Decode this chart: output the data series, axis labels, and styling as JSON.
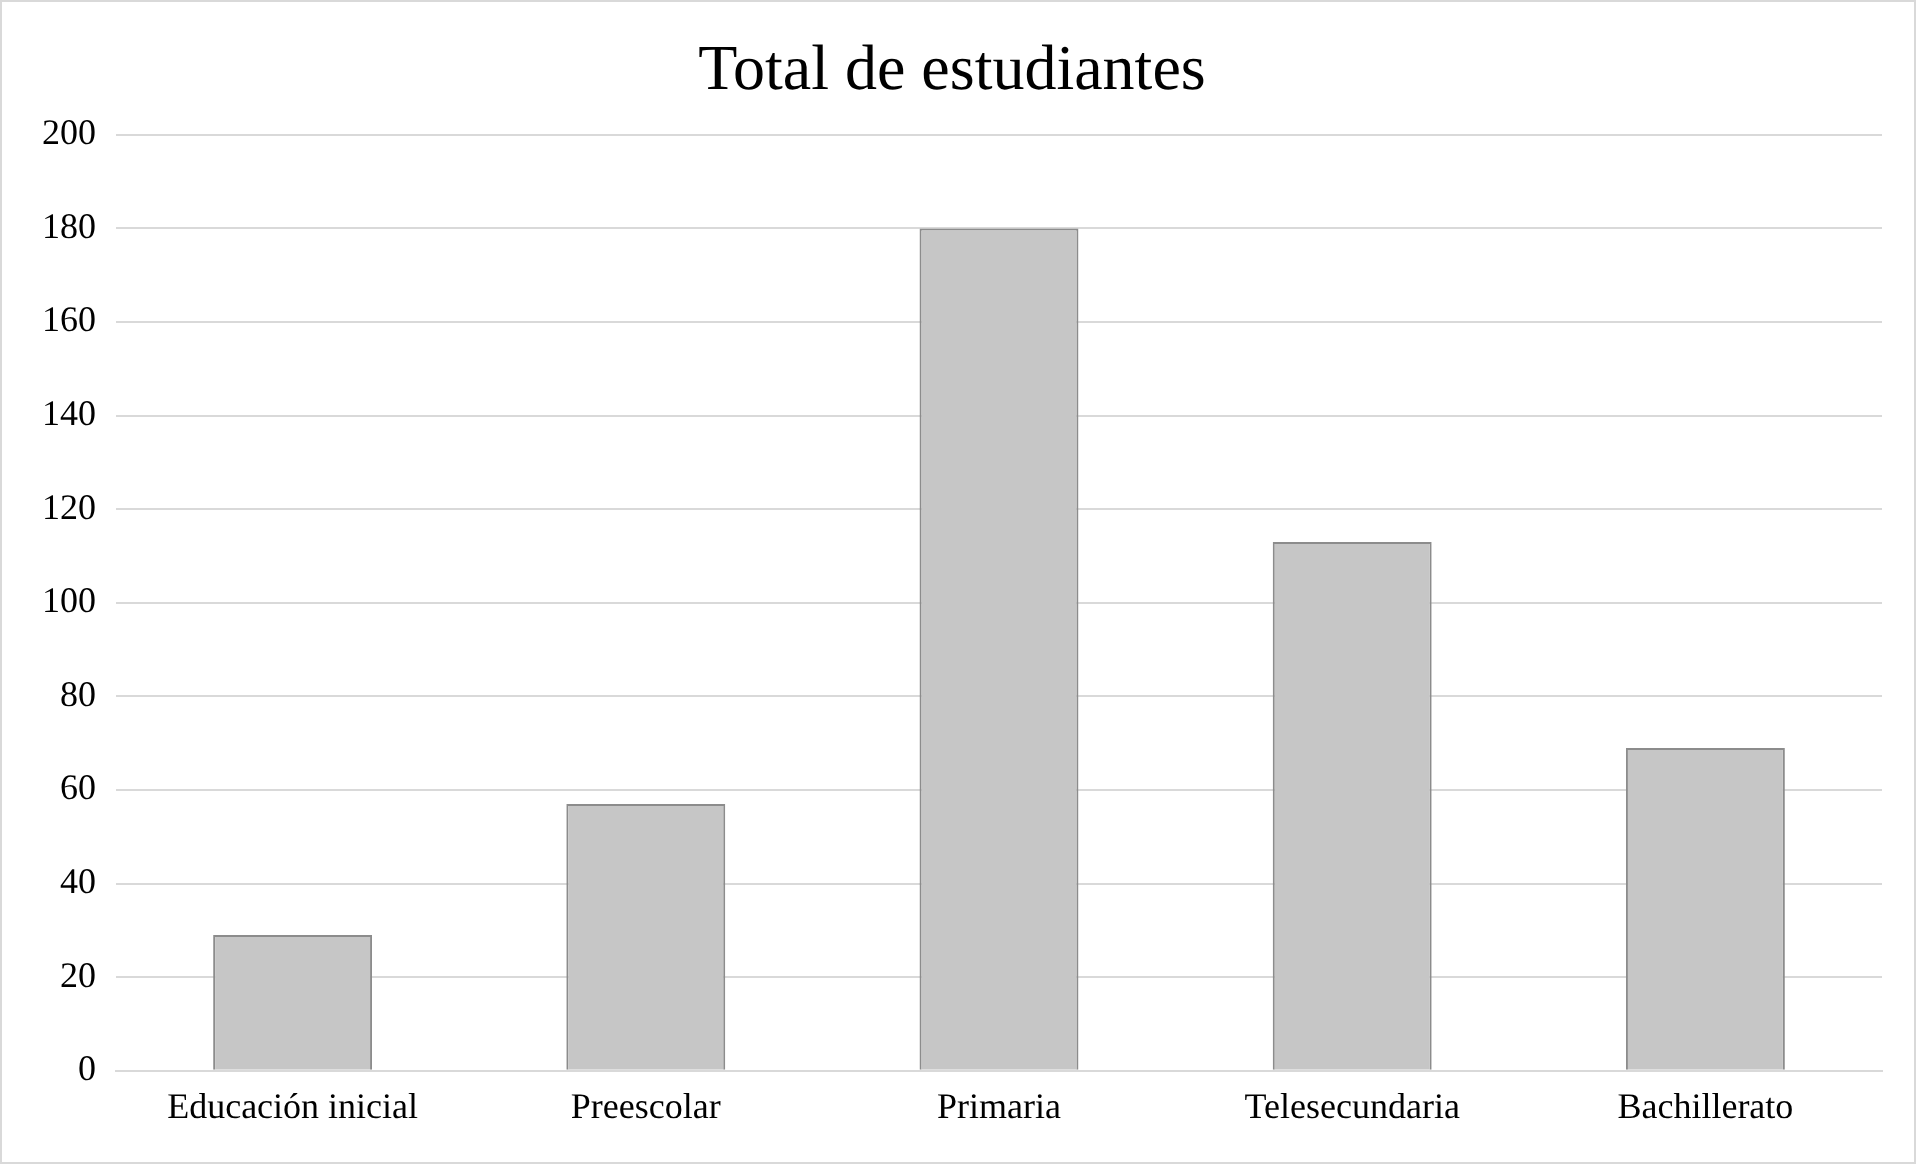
{
  "chart_data": {
    "type": "bar",
    "title": "Total de estudiantes",
    "categories": [
      "Educación inicial",
      "Preescolar",
      "Primaria",
      "Telesecundaria",
      "Bachillerato"
    ],
    "values": [
      29,
      57,
      180,
      113,
      69
    ],
    "color": "#c6c6c6",
    "ylim": [
      0,
      200
    ],
    "yticks": [
      0,
      20,
      40,
      60,
      80,
      100,
      120,
      140,
      160,
      180,
      200
    ],
    "grid": "y",
    "legend": false
  }
}
